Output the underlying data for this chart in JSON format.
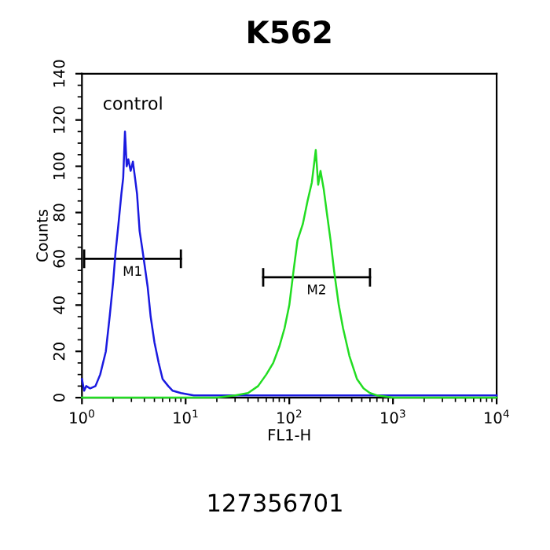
{
  "chart_data": {
    "type": "line",
    "title": "K562",
    "xlabel": "FL1-H",
    "ylabel": "Counts",
    "log": "x",
    "xlim": [
      1,
      10000
    ],
    "xticks": [
      {
        "value": 1,
        "label": "10$^{0}$"
      },
      {
        "value": 10,
        "label": "10$^{1}$"
      },
      {
        "value": 100,
        "label": "10$^{2}$"
      },
      {
        "value": 1000,
        "label": "10$^{3}$"
      },
      {
        "value": 10000,
        "label": "10$^{4}$"
      }
    ],
    "ylim": [
      0,
      140
    ],
    "yticks": [
      0,
      20,
      40,
      60,
      80,
      100,
      120,
      140
    ],
    "grid": false,
    "legend": false,
    "marker": "none",
    "line_style": "solid",
    "series": [
      {
        "color": "#1a1ae0",
        "x": [
          1.0,
          1.05,
          1.1,
          1.2,
          1.35,
          1.5,
          1.7,
          1.85,
          2.0,
          2.1,
          2.25,
          2.4,
          2.5,
          2.6,
          2.7,
          2.8,
          2.95,
          3.1,
          3.25,
          3.4,
          3.6,
          3.8,
          4.0,
          4.3,
          4.6,
          5.0,
          5.5,
          6.0,
          6.8,
          7.5,
          9,
          12,
          20,
          40,
          80,
          150,
          300,
          1000,
          3000,
          10000
        ],
        "values": [
          8,
          3,
          5,
          4,
          5,
          10,
          20,
          35,
          50,
          62,
          75,
          88,
          95,
          115,
          100,
          103,
          98,
          102,
          95,
          88,
          72,
          65,
          58,
          48,
          35,
          24,
          15,
          8,
          5,
          3,
          2,
          1,
          1,
          1,
          1,
          1,
          1,
          1,
          1,
          1
        ]
      },
      {
        "color": "#22dd22",
        "x": [
          1,
          5,
          10,
          20,
          30,
          40,
          50,
          60,
          70,
          80,
          90,
          100,
          110,
          120,
          135,
          150,
          165,
          180,
          190,
          200,
          215,
          230,
          250,
          270,
          300,
          330,
          380,
          450,
          520,
          600,
          700,
          1000,
          3000,
          10000
        ],
        "values": [
          0,
          0,
          0,
          0,
          1,
          2,
          5,
          10,
          15,
          22,
          30,
          40,
          55,
          68,
          75,
          85,
          93,
          107,
          92,
          98,
          90,
          80,
          68,
          55,
          40,
          30,
          18,
          8,
          4,
          2,
          1,
          0,
          0,
          0
        ]
      },
      {
        "name": "M1",
        "color": "#000000",
        "x": [
          1.05,
          9
        ],
        "values": [
          60,
          60
        ]
      },
      {
        "name": "M2",
        "color": "#000000",
        "x": [
          56,
          600
        ],
        "values": [
          52,
          52
        ]
      }
    ],
    "annotations": [
      "control",
      "127356701"
    ]
  }
}
